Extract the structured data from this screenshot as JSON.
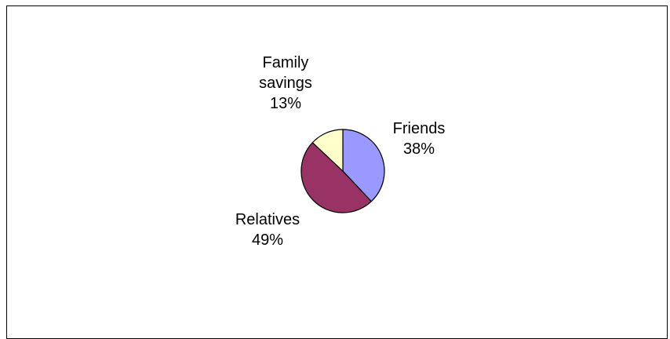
{
  "chart_data": {
    "type": "pie",
    "slices": [
      {
        "label_lines": [
          "Friends"
        ],
        "percent_label": "38%",
        "value": 38,
        "color": "#9999ff"
      },
      {
        "label_lines": [
          "Relatives"
        ],
        "percent_label": "49%",
        "value": 49,
        "color": "#993366"
      },
      {
        "label_lines": [
          "Family",
          "savings"
        ],
        "percent_label": "13%",
        "value": 13,
        "color": "#ffffcc"
      }
    ],
    "start_angle_deg": 0,
    "direction": "clockwise",
    "legend": "none",
    "labels": "outside"
  }
}
